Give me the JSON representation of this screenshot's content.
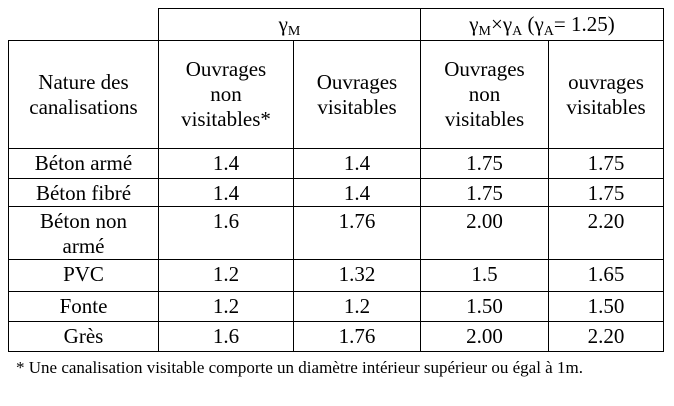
{
  "header": {
    "groups": [
      {
        "parts": [
          "γ",
          "M"
        ]
      },
      {
        "parts": [
          "γ",
          "M",
          "×γ",
          "A",
          " (γ",
          "A",
          "= 1.25)"
        ]
      }
    ],
    "columns": [
      "Nature des canalisations",
      "Ouvrages non visitables*",
      "Ouvrages visitables",
      "Ouvrages non visitables",
      "ouvrages visitables"
    ]
  },
  "table": {
    "rows": [
      [
        "Béton armé",
        "1.4",
        "1.4",
        "1.75",
        "1.75"
      ],
      [
        "Béton fibré",
        "1.4",
        "1.4",
        "1.75",
        "1.75"
      ],
      [
        "Béton non armé",
        "1.6",
        "1.76",
        "2.00",
        "2.20"
      ],
      [
        "PVC",
        "1.2",
        "1.32",
        "1.5",
        "1.65"
      ],
      [
        "Fonte",
        "1.2",
        "1.2",
        "1.50",
        "1.50"
      ],
      [
        "Grès",
        "1.6",
        "1.76",
        "2.00",
        "2.20"
      ]
    ]
  },
  "footnote": "* Une canalisation visitable comporte un diamètre intérieur supérieur ou égal à 1m."
}
